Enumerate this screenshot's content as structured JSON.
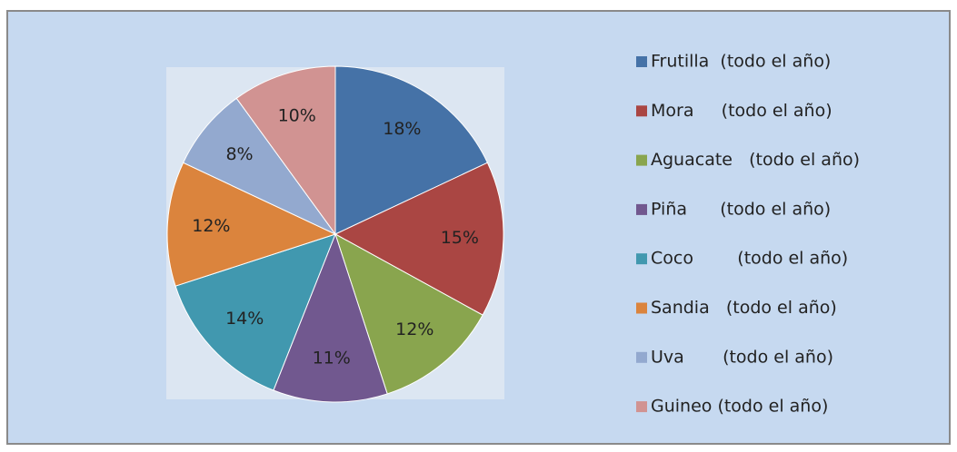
{
  "chart_data": {
    "type": "pie",
    "categories": [
      "Frutilla  (todo el año)",
      "Mora     (todo el año)",
      "Aguacate   (todo el año)",
      "Piña      (todo el año)",
      "Coco        (todo el año)",
      "Sandia   (todo el año)",
      "Uva       (todo el año)",
      "Guineo (todo el año)"
    ],
    "values": [
      18,
      15,
      12,
      11,
      14,
      12,
      8,
      10
    ],
    "value_labels": [
      "18%",
      "15%",
      "12%",
      "11%",
      "14%",
      "12%",
      "8%",
      "10%"
    ],
    "colors": [
      "#4572a7",
      "#aa4643",
      "#89a54e",
      "#71588f",
      "#4198af",
      "#db843d",
      "#93a9cf",
      "#d19392"
    ],
    "legend": "right"
  }
}
